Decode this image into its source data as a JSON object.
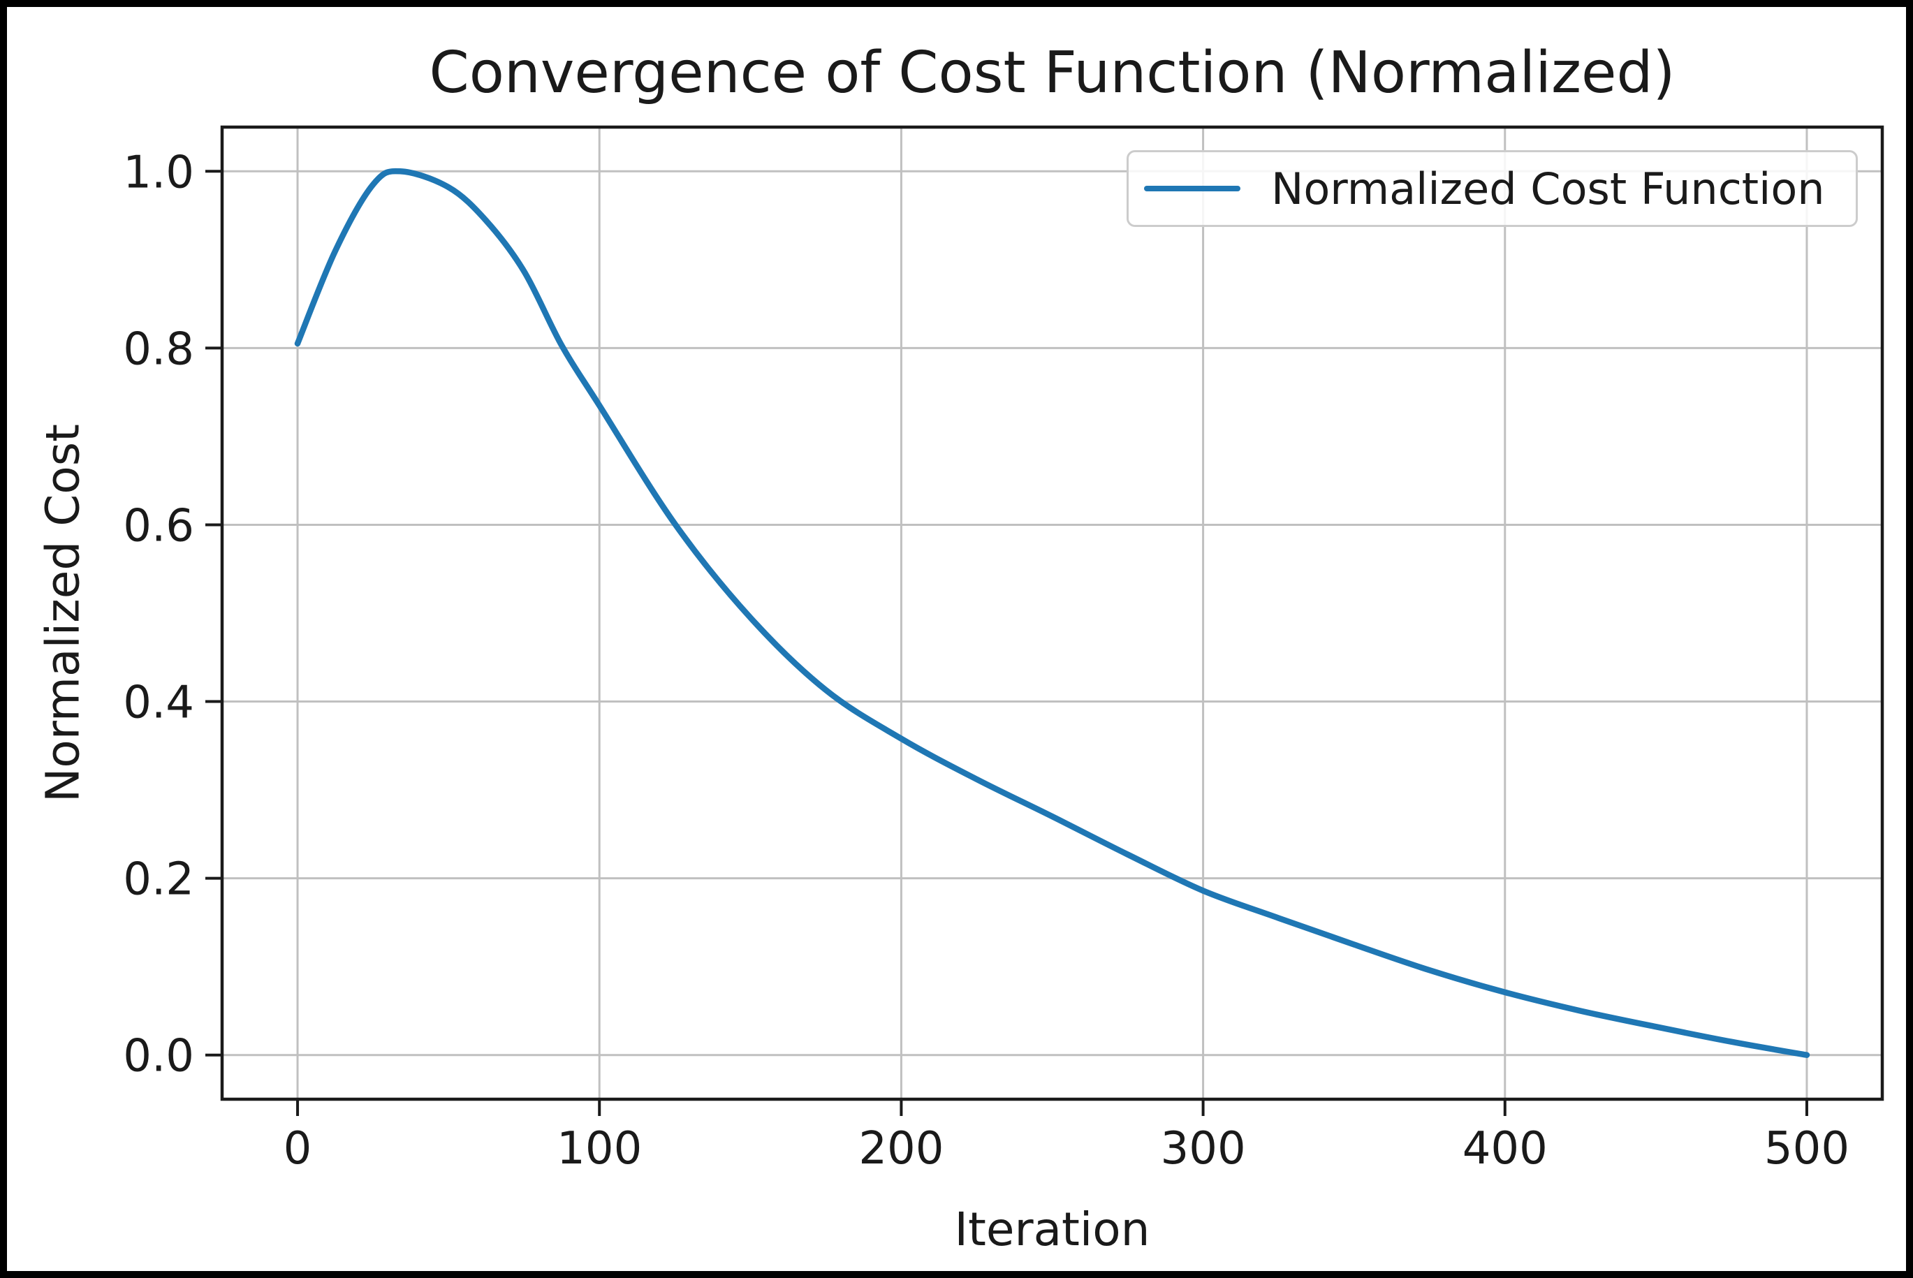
{
  "figure": {
    "background": "#ffffff",
    "frame_color": "#000000"
  },
  "style": {
    "line_color": "#1f77b4",
    "grid_color": "#c0c0c0",
    "spine_color": "#1a1a1a",
    "text_color": "#1a1a1a",
    "legend_border_color": "#cccccc"
  },
  "chart_data": {
    "type": "line",
    "title": "Convergence of Cost Function (Normalized)",
    "xlabel": "Iteration",
    "ylabel": "Normalized Cost",
    "grid": true,
    "xlim": [
      -25,
      525
    ],
    "ylim": [
      -0.05,
      1.05
    ],
    "xticks": [
      0,
      100,
      200,
      300,
      400,
      500
    ],
    "xtick_labels": [
      "0",
      "100",
      "200",
      "300",
      "400",
      "500"
    ],
    "yticks": [
      0.0,
      0.2,
      0.4,
      0.6,
      0.8,
      1.0
    ],
    "ytick_labels": [
      "0.0",
      "0.2",
      "0.4",
      "0.6",
      "0.8",
      "1.0"
    ],
    "legend": {
      "position": "upper right",
      "entries": [
        {
          "label": "Normalized Cost Function",
          "color": "#1f77b4"
        }
      ]
    },
    "series": [
      {
        "name": "Normalized Cost Function",
        "color": "#1f77b4",
        "x": [
          0,
          12.5,
          25,
          34,
          50,
          62.5,
          75,
          87.5,
          100,
          125,
          150,
          175,
          200,
          225,
          250,
          275,
          300,
          325,
          350,
          375,
          400,
          425,
          450,
          475,
          500
        ],
        "y": [
          0.805,
          0.91,
          0.985,
          1.0,
          0.982,
          0.944,
          0.887,
          0.803,
          0.735,
          0.601,
          0.495,
          0.413,
          0.358,
          0.312,
          0.27,
          0.227,
          0.186,
          0.155,
          0.125,
          0.096,
          0.071,
          0.05,
          0.032,
          0.015,
          0.0
        ]
      }
    ]
  }
}
